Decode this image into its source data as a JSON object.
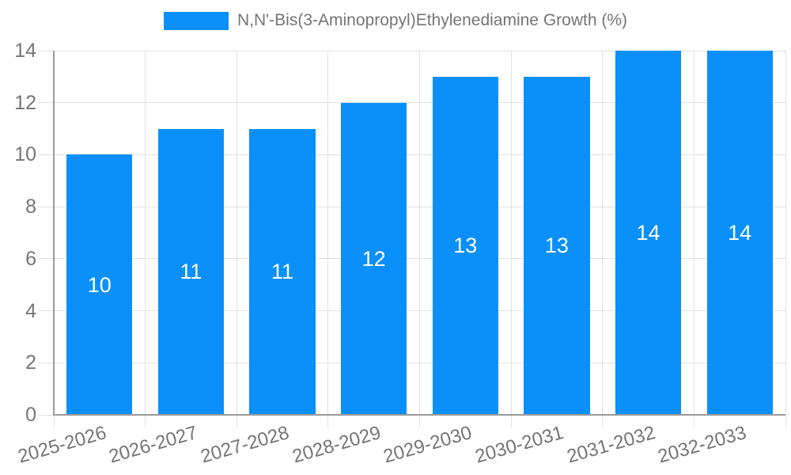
{
  "legend": {
    "label": "N,N'-Bis(3-Aminopropyl)Ethylenediamine Growth (%)"
  },
  "chart_data": {
    "type": "bar",
    "title": "",
    "xlabel": "",
    "ylabel": "",
    "categories": [
      "2025-2026",
      "2026-2027",
      "2027-2028",
      "2028-2029",
      "2029-2030",
      "2030-2031",
      "2031-2032",
      "2032-2033"
    ],
    "series": [
      {
        "name": "N,N'-Bis(3-Aminopropyl)Ethylenediamine Growth (%)",
        "values": [
          10,
          11,
          11,
          12,
          13,
          13,
          14,
          14
        ]
      }
    ],
    "ylim": [
      0,
      14
    ],
    "yticks": [
      0,
      2,
      4,
      6,
      8,
      10,
      12,
      14
    ],
    "grid": true,
    "legend_position": "top-center",
    "bar_labels_shown": true,
    "x_label_rotation_deg": -16,
    "colors": {
      "bar": "#0b90fa",
      "bar_label": "#ffffff",
      "axis": "#999999",
      "grid": "#e0e0e0",
      "tick_label": "#757575",
      "legend_text": "#757575",
      "background": "#ffffff"
    }
  }
}
